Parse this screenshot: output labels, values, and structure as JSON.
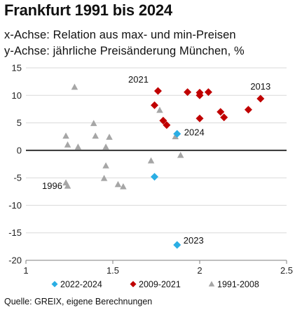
{
  "header": {
    "title": "Frankfurt 1991 bis 2024",
    "subtitle_x": "x-Achse: Relation aus max- und min-Preisen",
    "subtitle_y": "y-Achse: jährliche Preisänderung München, %"
  },
  "source": "Quelle: GREIX, eigene Berechnungen",
  "colors": {
    "s2022": "#2aaee4",
    "s2009": "#c00000",
    "s1991": "#a6a6a6",
    "zero_line": "#333333",
    "grid": "#d9d9d9"
  },
  "chart_data": {
    "type": "scatter",
    "title": "Frankfurt 1991 bis 2024",
    "xlabel": "x-Achse: Relation aus max- und min-Preisen",
    "ylabel": "y-Achse: jährliche Preisänderung München, %",
    "xlim": [
      1,
      2.5
    ],
    "ylim": [
      -20,
      15
    ],
    "x_ticks": [
      "1",
      "1.5",
      "2",
      "2.5"
    ],
    "y_ticks": [
      "15",
      "10",
      "5",
      "0",
      "-5",
      "-10",
      "-15",
      "-20"
    ],
    "grid": "horizontal",
    "legend_position": "bottom",
    "series": [
      {
        "name": "2022-2024",
        "marker": "diamond",
        "points": [
          {
            "x": 1.74,
            "y": -4.8
          },
          {
            "x": 1.87,
            "y": -17.2
          },
          {
            "x": 1.87,
            "y": 3.0
          }
        ]
      },
      {
        "name": "2009-2021",
        "marker": "diamond",
        "points": [
          {
            "x": 1.76,
            "y": 10.8
          },
          {
            "x": 1.74,
            "y": 8.2
          },
          {
            "x": 1.79,
            "y": 5.4
          },
          {
            "x": 1.81,
            "y": 4.6
          },
          {
            "x": 1.93,
            "y": 10.6
          },
          {
            "x": 2.0,
            "y": 10.0
          },
          {
            "x": 2.0,
            "y": 10.5
          },
          {
            "x": 2.05,
            "y": 10.6
          },
          {
            "x": 2.0,
            "y": 5.8
          },
          {
            "x": 2.12,
            "y": 7.0
          },
          {
            "x": 2.14,
            "y": 6.0
          },
          {
            "x": 2.28,
            "y": 7.4
          },
          {
            "x": 2.35,
            "y": 9.4
          }
        ]
      },
      {
        "name": "1991-2008",
        "marker": "triangle",
        "points": [
          {
            "x": 1.23,
            "y": -5.9
          },
          {
            "x": 1.24,
            "y": -6.5
          },
          {
            "x": 1.23,
            "y": 2.6
          },
          {
            "x": 1.24,
            "y": 1.0
          },
          {
            "x": 1.28,
            "y": 11.5
          },
          {
            "x": 1.3,
            "y": 0.6
          },
          {
            "x": 1.39,
            "y": 4.9
          },
          {
            "x": 1.4,
            "y": 2.6
          },
          {
            "x": 1.46,
            "y": 0.6
          },
          {
            "x": 1.48,
            "y": 2.4
          },
          {
            "x": 1.46,
            "y": -2.8
          },
          {
            "x": 1.45,
            "y": -5.1
          },
          {
            "x": 1.53,
            "y": -6.2
          },
          {
            "x": 1.56,
            "y": -6.6
          },
          {
            "x": 1.72,
            "y": -1.9
          },
          {
            "x": 1.77,
            "y": 7.3
          },
          {
            "x": 1.86,
            "y": 2.5
          },
          {
            "x": 1.89,
            "y": -0.9
          }
        ]
      }
    ],
    "annotations": [
      {
        "text": "2021",
        "x": 1.76,
        "y": 10.8
      },
      {
        "text": "2013",
        "x": 2.35,
        "y": 9.4
      },
      {
        "text": "2024",
        "x": 1.87,
        "y": 3.0
      },
      {
        "text": "1996",
        "x": 1.24,
        "y": -6.5
      },
      {
        "text": "2023",
        "x": 1.87,
        "y": -17.2
      }
    ]
  }
}
